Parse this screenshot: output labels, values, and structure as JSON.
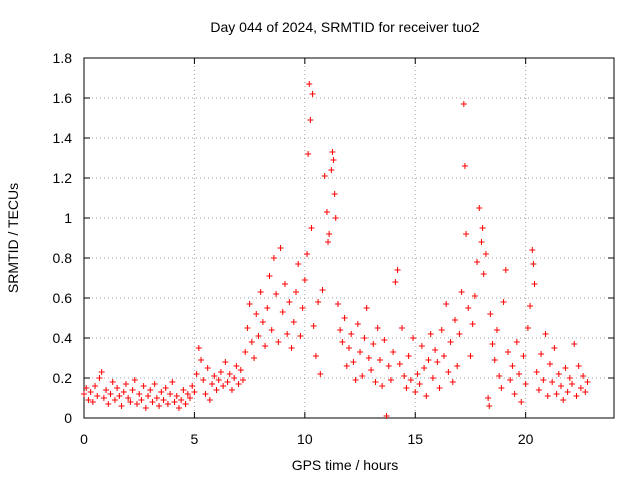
{
  "chart_data": {
    "type": "scatter",
    "title": "Day 044 of 2024, SRMTID for receiver tuo2",
    "xlabel": "GPS time / hours",
    "ylabel": "SRMTID / TECUs",
    "xlim": [
      0,
      24
    ],
    "ylim": [
      0,
      1.8
    ],
    "xticks": [
      0,
      5,
      10,
      15,
      20
    ],
    "xtick_labels": [
      "0",
      "5",
      "10",
      "15",
      "20"
    ],
    "yticks": [
      0,
      0.2,
      0.4,
      0.6,
      0.8,
      1,
      1.2,
      1.4,
      1.6,
      1.8
    ],
    "ytick_labels": [
      "0",
      "0.2",
      "0.4",
      "0.6",
      "0.8",
      "1",
      "1.2",
      "1.4",
      "1.6",
      "1.8"
    ],
    "grid": true,
    "marker": "plus",
    "color": "#ff0000",
    "series": [
      {
        "name": "SRMTID",
        "points": [
          [
            0.0,
            0.12
          ],
          [
            0.1,
            0.15
          ],
          [
            0.2,
            0.09
          ],
          [
            0.3,
            0.13
          ],
          [
            0.4,
            0.08
          ],
          [
            0.5,
            0.16
          ],
          [
            0.6,
            0.11
          ],
          [
            0.7,
            0.2
          ],
          [
            0.8,
            0.23
          ],
          [
            0.9,
            0.1
          ],
          [
            1.0,
            0.14
          ],
          [
            1.1,
            0.07
          ],
          [
            1.2,
            0.12
          ],
          [
            1.3,
            0.18
          ],
          [
            1.4,
            0.09
          ],
          [
            1.5,
            0.15
          ],
          [
            1.6,
            0.11
          ],
          [
            1.7,
            0.06
          ],
          [
            1.8,
            0.13
          ],
          [
            1.9,
            0.17
          ],
          [
            2.0,
            0.1
          ],
          [
            2.1,
            0.08
          ],
          [
            2.2,
            0.14
          ],
          [
            2.3,
            0.19
          ],
          [
            2.4,
            0.07
          ],
          [
            2.5,
            0.12
          ],
          [
            2.6,
            0.09
          ],
          [
            2.7,
            0.16
          ],
          [
            2.8,
            0.05
          ],
          [
            2.9,
            0.11
          ],
          [
            3.0,
            0.14
          ],
          [
            3.1,
            0.08
          ],
          [
            3.2,
            0.17
          ],
          [
            3.3,
            0.1
          ],
          [
            3.4,
            0.06
          ],
          [
            3.5,
            0.13
          ],
          [
            3.6,
            0.09
          ],
          [
            3.7,
            0.15
          ],
          [
            3.8,
            0.07
          ],
          [
            3.9,
            0.12
          ],
          [
            4.0,
            0.18
          ],
          [
            4.1,
            0.08
          ],
          [
            4.2,
            0.11
          ],
          [
            4.3,
            0.05
          ],
          [
            4.4,
            0.09
          ],
          [
            4.5,
            0.14
          ],
          [
            4.6,
            0.07
          ],
          [
            4.7,
            0.12
          ],
          [
            4.8,
            0.1
          ],
          [
            4.9,
            0.16
          ],
          [
            5.0,
            0.13
          ],
          [
            5.1,
            0.22
          ],
          [
            5.2,
            0.35
          ],
          [
            5.3,
            0.29
          ],
          [
            5.4,
            0.19
          ],
          [
            5.5,
            0.12
          ],
          [
            5.6,
            0.25
          ],
          [
            5.7,
            0.09
          ],
          [
            5.8,
            0.17
          ],
          [
            5.9,
            0.21
          ],
          [
            6.0,
            0.14
          ],
          [
            6.1,
            0.19
          ],
          [
            6.2,
            0.23
          ],
          [
            6.3,
            0.16
          ],
          [
            6.4,
            0.28
          ],
          [
            6.5,
            0.18
          ],
          [
            6.6,
            0.22
          ],
          [
            6.7,
            0.14
          ],
          [
            6.8,
            0.2
          ],
          [
            6.9,
            0.26
          ],
          [
            7.0,
            0.17
          ],
          [
            7.1,
            0.24
          ],
          [
            7.2,
            0.19
          ],
          [
            7.3,
            0.33
          ],
          [
            7.4,
            0.45
          ],
          [
            7.5,
            0.57
          ],
          [
            7.6,
            0.38
          ],
          [
            7.7,
            0.3
          ],
          [
            7.8,
            0.52
          ],
          [
            7.9,
            0.41
          ],
          [
            8.0,
            0.63
          ],
          [
            8.1,
            0.48
          ],
          [
            8.2,
            0.36
          ],
          [
            8.3,
            0.55
          ],
          [
            8.4,
            0.71
          ],
          [
            8.5,
            0.44
          ],
          [
            8.6,
            0.8
          ],
          [
            8.7,
            0.62
          ],
          [
            8.8,
            0.38
          ],
          [
            8.9,
            0.85
          ],
          [
            9.0,
            0.53
          ],
          [
            9.1,
            0.67
          ],
          [
            9.2,
            0.42
          ],
          [
            9.3,
            0.58
          ],
          [
            9.4,
            0.35
          ],
          [
            9.5,
            0.48
          ],
          [
            9.6,
            0.63
          ],
          [
            9.7,
            0.77
          ],
          [
            9.8,
            0.41
          ],
          [
            9.9,
            0.55
          ],
          [
            10.0,
            0.69
          ],
          [
            10.1,
            0.82
          ],
          [
            10.15,
            1.32
          ],
          [
            10.2,
            1.67
          ],
          [
            10.25,
            1.49
          ],
          [
            10.3,
            0.95
          ],
          [
            10.35,
            1.62
          ],
          [
            10.4,
            0.46
          ],
          [
            10.5,
            0.31
          ],
          [
            10.6,
            0.58
          ],
          [
            10.7,
            0.22
          ],
          [
            10.8,
            0.64
          ],
          [
            10.9,
            1.21
          ],
          [
            11.0,
            1.03
          ],
          [
            11.05,
            0.88
          ],
          [
            11.1,
            0.92
          ],
          [
            11.2,
            1.24
          ],
          [
            11.25,
            1.33
          ],
          [
            11.3,
            1.29
          ],
          [
            11.35,
            1.12
          ],
          [
            11.4,
            1.0
          ],
          [
            11.5,
            0.57
          ],
          [
            11.6,
            0.44
          ],
          [
            11.7,
            0.38
          ],
          [
            11.8,
            0.5
          ],
          [
            11.9,
            0.26
          ],
          [
            12.0,
            0.35
          ],
          [
            12.1,
            0.42
          ],
          [
            12.2,
            0.28
          ],
          [
            12.3,
            0.19
          ],
          [
            12.4,
            0.47
          ],
          [
            12.5,
            0.33
          ],
          [
            12.6,
            0.21
          ],
          [
            12.7,
            0.4
          ],
          [
            12.8,
            0.55
          ],
          [
            12.9,
            0.3
          ],
          [
            13.0,
            0.24
          ],
          [
            13.1,
            0.37
          ],
          [
            13.2,
            0.18
          ],
          [
            13.3,
            0.45
          ],
          [
            13.4,
            0.29
          ],
          [
            13.5,
            0.16
          ],
          [
            13.6,
            0.39
          ],
          [
            13.7,
            0.01
          ],
          [
            13.8,
            0.26
          ],
          [
            13.9,
            0.19
          ],
          [
            14.0,
            0.33
          ],
          [
            14.1,
            0.68
          ],
          [
            14.2,
            0.74
          ],
          [
            14.3,
            0.27
          ],
          [
            14.4,
            0.45
          ],
          [
            14.5,
            0.21
          ],
          [
            14.6,
            0.15
          ],
          [
            14.7,
            0.31
          ],
          [
            14.8,
            0.19
          ],
          [
            14.9,
            0.4
          ],
          [
            15.0,
            0.13
          ],
          [
            15.1,
            0.22
          ],
          [
            15.2,
            0.17
          ],
          [
            15.3,
            0.36
          ],
          [
            15.4,
            0.25
          ],
          [
            15.5,
            0.11
          ],
          [
            15.6,
            0.29
          ],
          [
            15.7,
            0.42
          ],
          [
            15.8,
            0.2
          ],
          [
            15.9,
            0.34
          ],
          [
            16.0,
            0.28
          ],
          [
            16.1,
            0.15
          ],
          [
            16.2,
            0.44
          ],
          [
            16.3,
            0.31
          ],
          [
            16.4,
            0.57
          ],
          [
            16.5,
            0.23
          ],
          [
            16.6,
            0.38
          ],
          [
            16.7,
            0.18
          ],
          [
            16.8,
            0.49
          ],
          [
            16.9,
            0.26
          ],
          [
            17.0,
            0.42
          ],
          [
            17.1,
            0.63
          ],
          [
            17.2,
            1.57
          ],
          [
            17.25,
            1.26
          ],
          [
            17.3,
            0.92
          ],
          [
            17.4,
            0.55
          ],
          [
            17.5,
            0.31
          ],
          [
            17.6,
            0.47
          ],
          [
            17.7,
            0.61
          ],
          [
            17.8,
            0.78
          ],
          [
            17.9,
            1.05
          ],
          [
            18.0,
            0.88
          ],
          [
            18.05,
            0.95
          ],
          [
            18.1,
            0.72
          ],
          [
            18.2,
            0.82
          ],
          [
            18.3,
            0.1
          ],
          [
            18.35,
            0.06
          ],
          [
            18.4,
            0.52
          ],
          [
            18.5,
            0.37
          ],
          [
            18.6,
            0.29
          ],
          [
            18.7,
            0.44
          ],
          [
            18.8,
            0.21
          ],
          [
            18.9,
            0.15
          ],
          [
            19.0,
            0.58
          ],
          [
            19.1,
            0.74
          ],
          [
            19.2,
            0.33
          ],
          [
            19.3,
            0.19
          ],
          [
            19.4,
            0.26
          ],
          [
            19.5,
            0.12
          ],
          [
            19.6,
            0.38
          ],
          [
            19.7,
            0.22
          ],
          [
            19.8,
            0.08
          ],
          [
            19.9,
            0.31
          ],
          [
            20.0,
            0.17
          ],
          [
            20.1,
            0.45
          ],
          [
            20.2,
            0.56
          ],
          [
            20.3,
            0.84
          ],
          [
            20.35,
            0.77
          ],
          [
            20.4,
            0.67
          ],
          [
            20.5,
            0.23
          ],
          [
            20.6,
            0.14
          ],
          [
            20.7,
            0.32
          ],
          [
            20.8,
            0.19
          ],
          [
            20.9,
            0.42
          ],
          [
            21.0,
            0.11
          ],
          [
            21.1,
            0.27
          ],
          [
            21.2,
            0.18
          ],
          [
            21.3,
            0.35
          ],
          [
            21.4,
            0.12
          ],
          [
            21.5,
            0.22
          ],
          [
            21.6,
            0.16
          ],
          [
            21.7,
            0.09
          ],
          [
            21.8,
            0.25
          ],
          [
            21.9,
            0.13
          ],
          [
            22.0,
            0.2
          ],
          [
            22.1,
            0.17
          ],
          [
            22.2,
            0.37
          ],
          [
            22.3,
            0.11
          ],
          [
            22.4,
            0.26
          ],
          [
            22.5,
            0.15
          ],
          [
            22.6,
            0.21
          ],
          [
            22.7,
            0.13
          ],
          [
            22.8,
            0.18
          ]
        ]
      }
    ]
  }
}
